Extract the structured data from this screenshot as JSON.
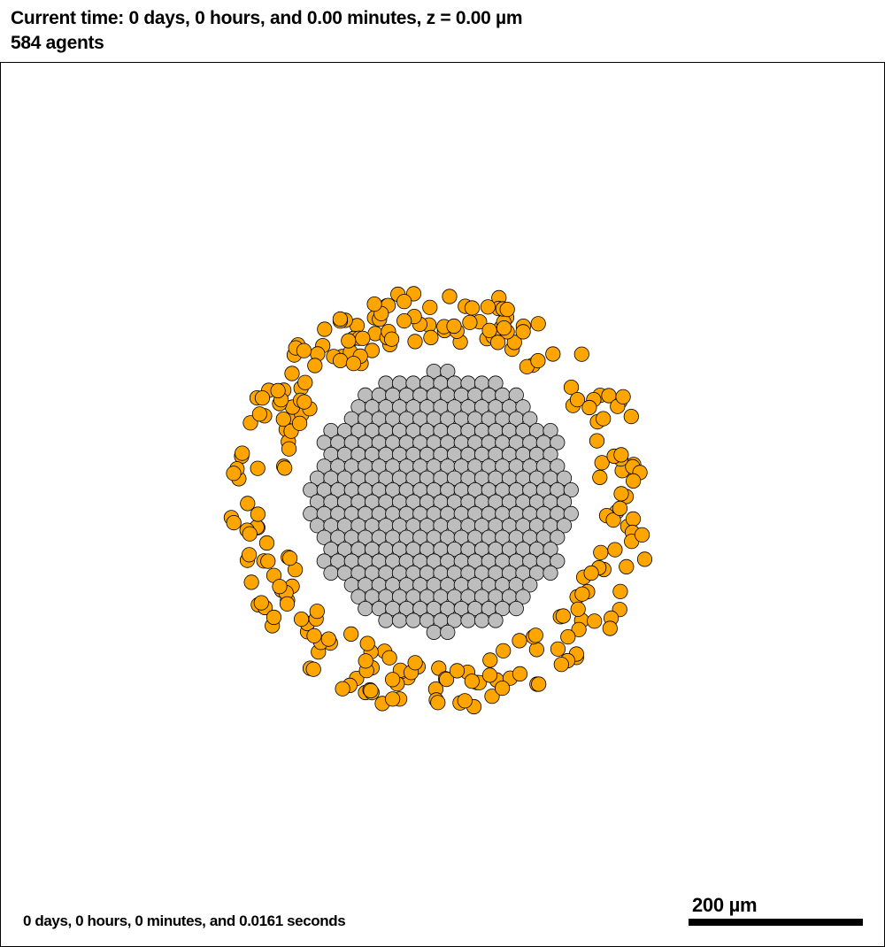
{
  "header": {
    "time_line": "Current time: 0 days, 0 hours, and 0.00 minutes, z = 0.00 µm",
    "agent_count_line": "584 agents"
  },
  "footer": {
    "elapsed_label": "0 days, 0 hours, 0 minutes, and 0.0161 seconds"
  },
  "scale_bar": {
    "label": "200 µm"
  },
  "cells": {
    "core_color": "#bdbdbd",
    "ring_color": "#ffa500",
    "outline_color": "#000000"
  }
}
